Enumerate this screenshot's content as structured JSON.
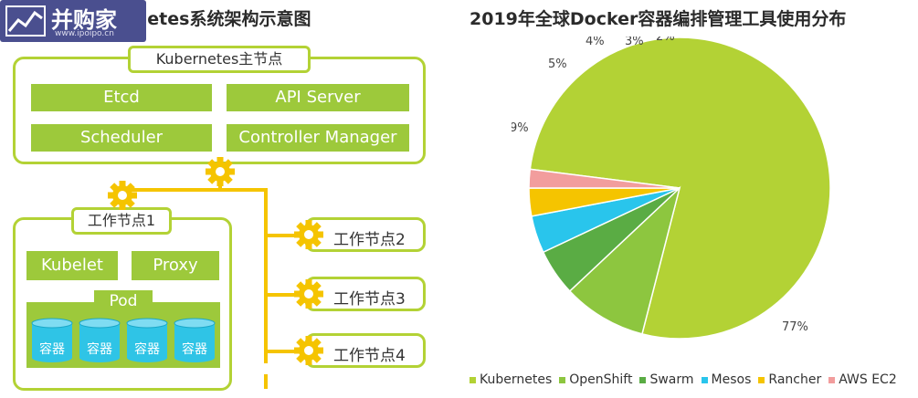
{
  "logo": {
    "brand": "并购家",
    "site": "www.ipoipo.cn",
    "icon": "chart-line-icon"
  },
  "left": {
    "title": "Kubernetes系统架构示意图",
    "master": {
      "label": "Kubernetes主节点",
      "components": [
        "Etcd",
        "API Server",
        "Scheduler",
        "Controller Manager"
      ]
    },
    "worker1": {
      "label": "工作节点1",
      "components": [
        "Kubelet",
        "Proxy"
      ],
      "pod_label": "Pod",
      "containers": [
        "容器",
        "容器",
        "容器",
        "容器"
      ]
    },
    "other_workers": [
      "工作节点2",
      "工作节点3",
      "工作节点4"
    ],
    "colors": {
      "green": "#9dc93b",
      "outline": "#b3d235",
      "connector": "#f5c400",
      "cylinder": "#2fc4e6"
    }
  },
  "chart_data": {
    "type": "pie",
    "title": "2019年全球Docker容器编排管理工具使用分布",
    "categories": [
      "Kubernetes",
      "OpenShift",
      "Swarm",
      "Mesos",
      "Rancher",
      "AWS EC2"
    ],
    "values": [
      77,
      9,
      5,
      4,
      3,
      2
    ],
    "labels": [
      "77%",
      "9%",
      "5%",
      "4%",
      "3%",
      "2%"
    ],
    "colors": [
      "#b3d235",
      "#8dc63f",
      "#5aac44",
      "#29c5ec",
      "#f5c400",
      "#f29d9d"
    ],
    "legend_position": "bottom"
  }
}
